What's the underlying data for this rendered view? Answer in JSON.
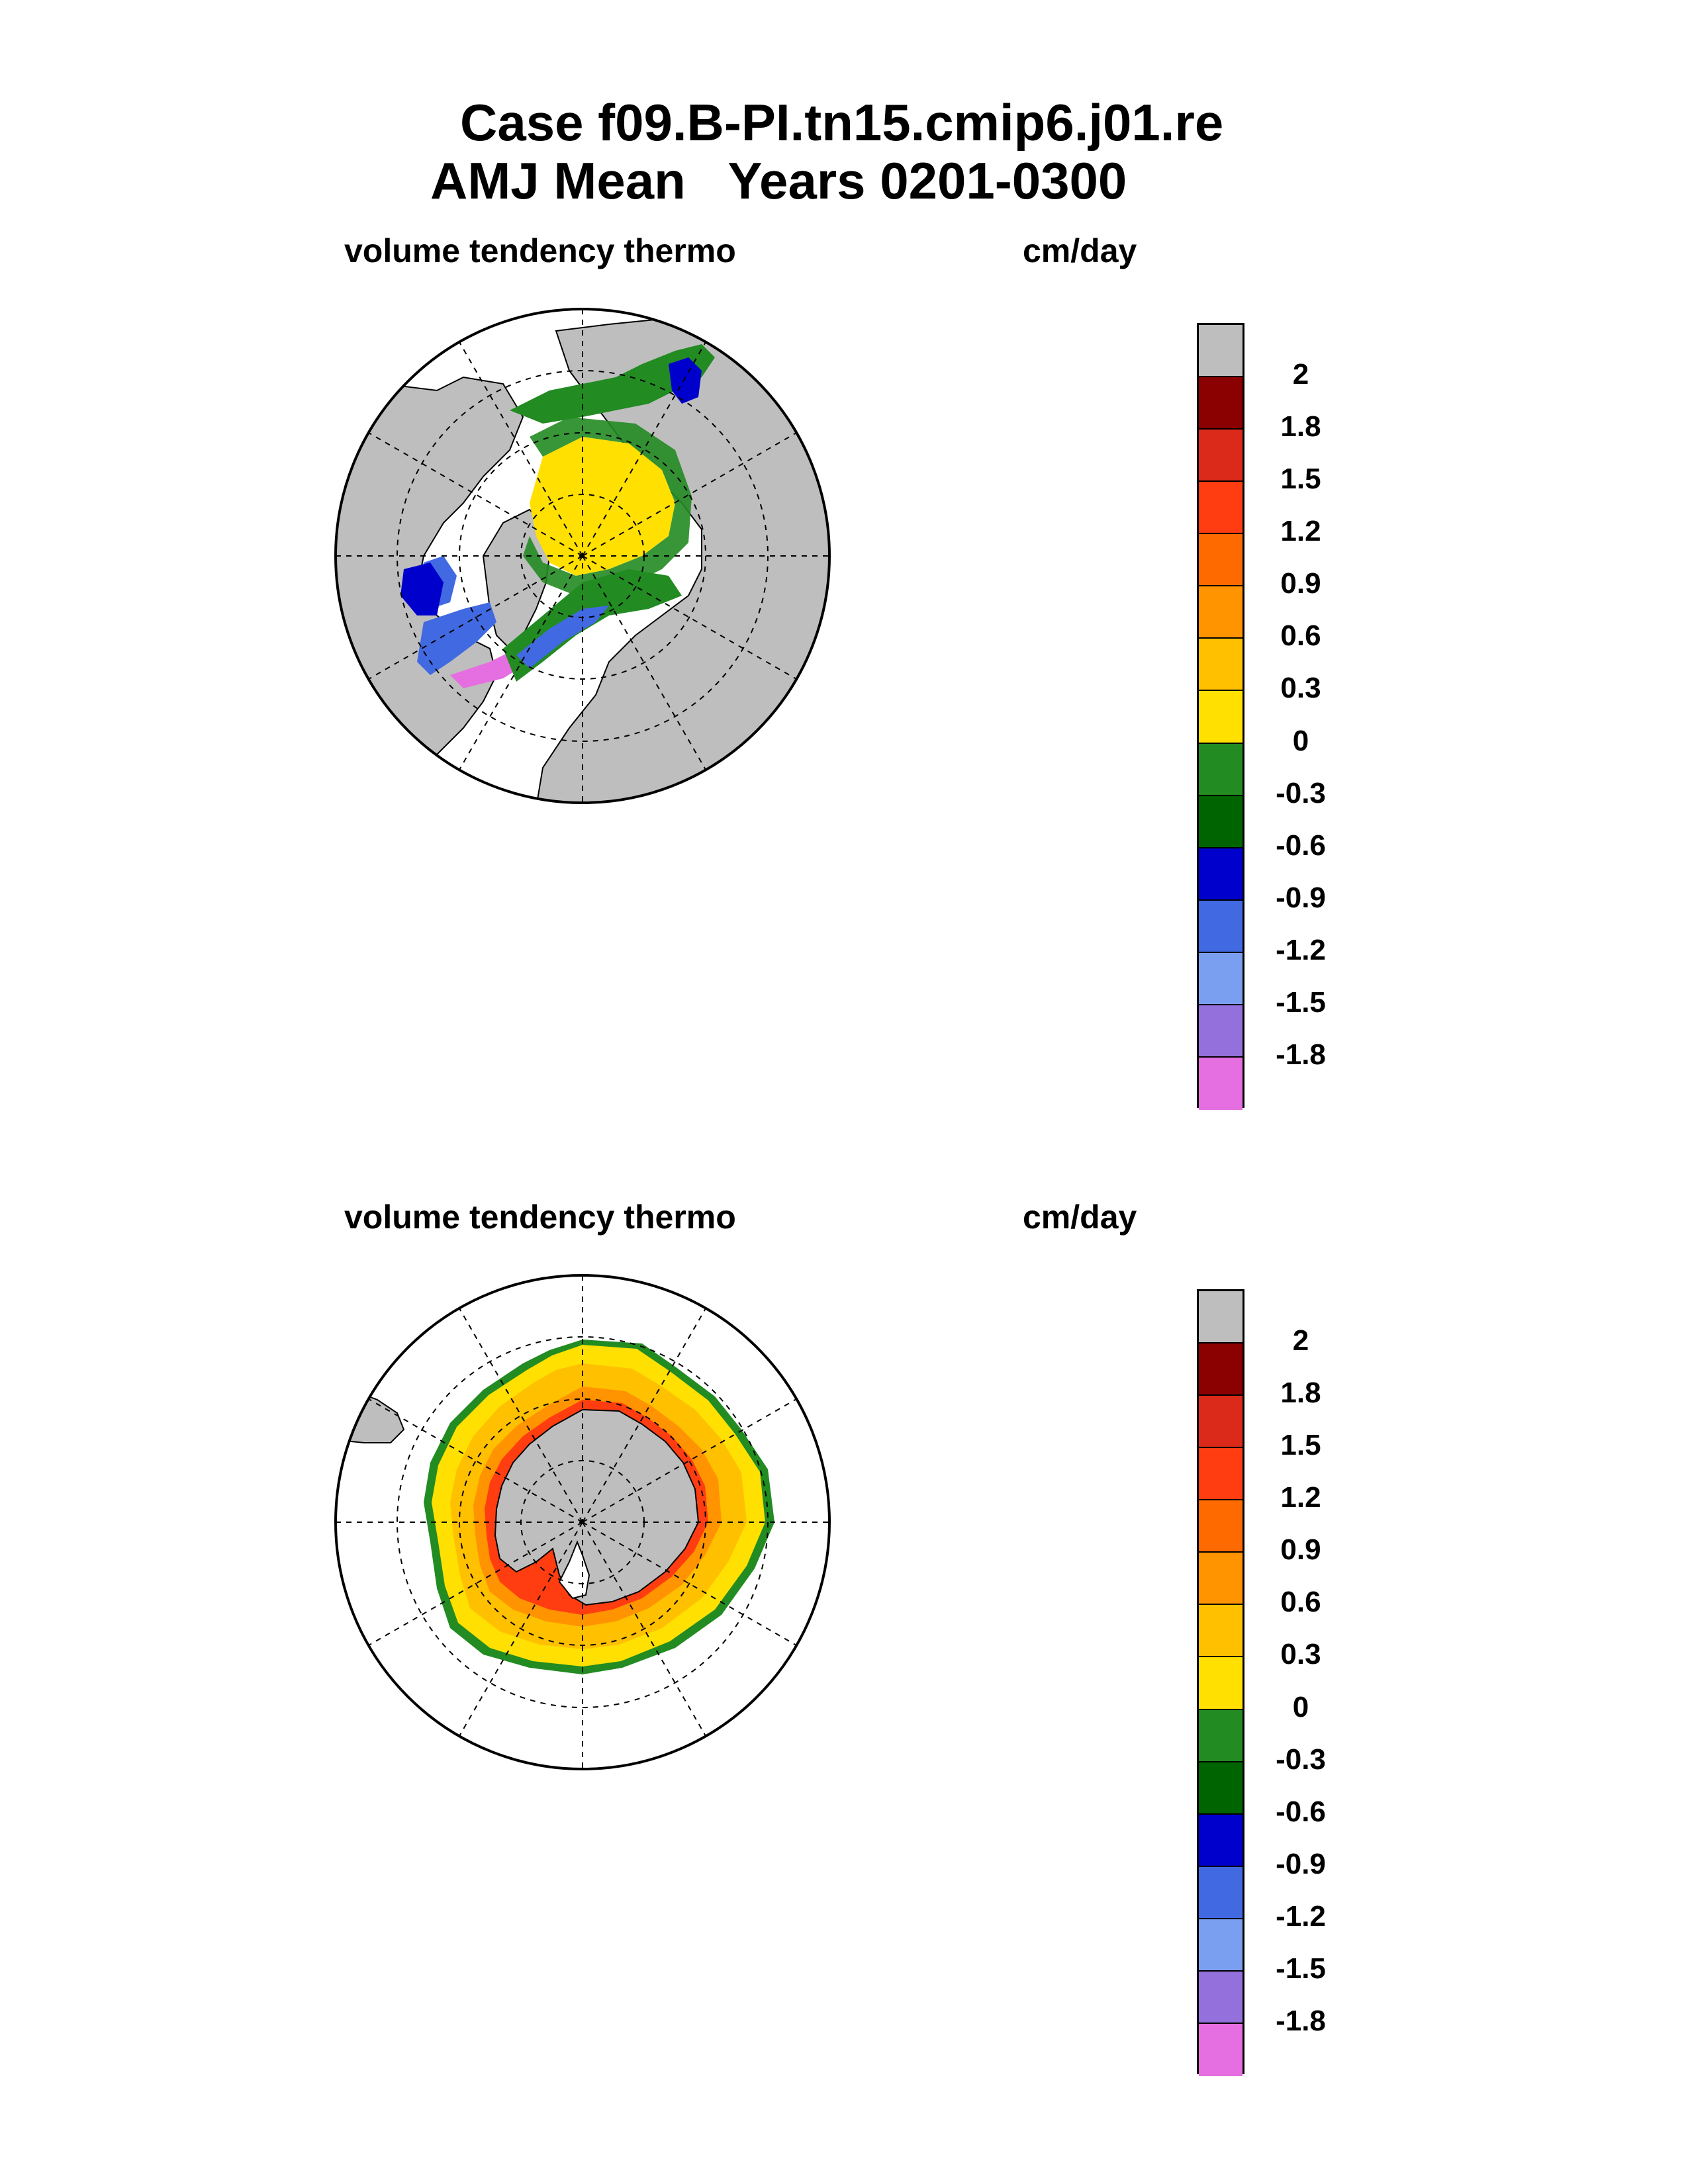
{
  "title": {
    "line1": "Case f09.B-PI.tn15.cmip6.j01.re",
    "line2": "AMJ Mean   Years 0201-0300"
  },
  "panels": [
    {
      "id": "north",
      "left_label": "volume tendency thermo",
      "right_label": "cm/day"
    },
    {
      "id": "south",
      "left_label": "volume tendency thermo",
      "right_label": "cm/day"
    }
  ],
  "colorbar": {
    "labels": [
      "2",
      "1.8",
      "1.5",
      "1.2",
      "0.9",
      "0.6",
      "0.3",
      "0",
      "-0.3",
      "-0.6",
      "-0.9",
      "-1.2",
      "-1.5",
      "-1.8"
    ],
    "colors": [
      "#bebebe",
      "#8b0000",
      "#dc2a1a",
      "#ff3d10",
      "#ff6a00",
      "#ff9300",
      "#ffc000",
      "#ffe000",
      "#228b22",
      "#006400",
      "#0000cd",
      "#4169e1",
      "#7b9ff0",
      "#9370db",
      "#e56fe0"
    ]
  },
  "colors": {
    "land": "#bebebe",
    "ocean": "#ffffff"
  }
}
